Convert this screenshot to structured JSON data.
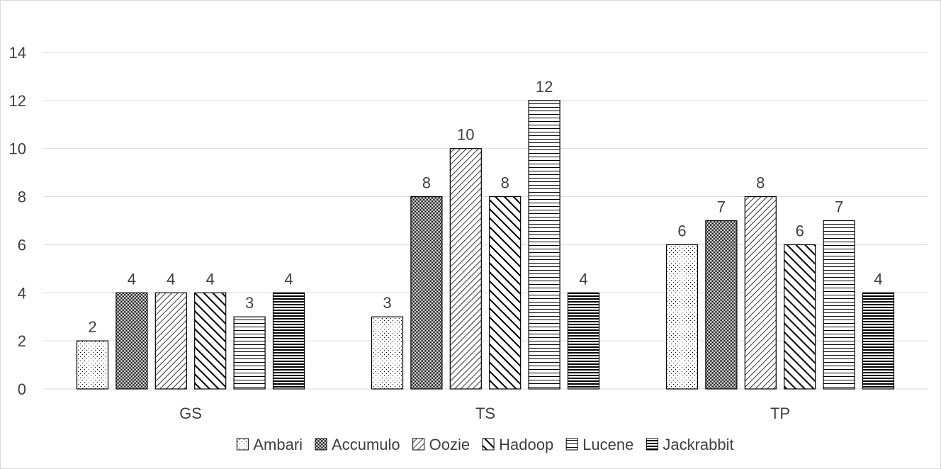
{
  "chart_data": {
    "type": "bar",
    "title": "",
    "xlabel": "",
    "ylabel": "",
    "categories": [
      "GS",
      "TS",
      "TP"
    ],
    "series": [
      {
        "name": "Ambari",
        "values": [
          2,
          3,
          6
        ],
        "pattern": "dots"
      },
      {
        "name": "Accumulo",
        "values": [
          4,
          8,
          7
        ],
        "pattern": "dense-dots"
      },
      {
        "name": "Oozie",
        "values": [
          4,
          10,
          8
        ],
        "pattern": "light-downward-diagonal"
      },
      {
        "name": "Hadoop",
        "values": [
          4,
          8,
          6
        ],
        "pattern": "wide-upward-diagonal"
      },
      {
        "name": "Lucene",
        "values": [
          3,
          12,
          7
        ],
        "pattern": "light-horizontal"
      },
      {
        "name": "Jackrabbit",
        "values": [
          4,
          4,
          4
        ],
        "pattern": "dark-horizontal"
      }
    ],
    "ylim": [
      0,
      14
    ],
    "yticks": [
      0,
      2,
      4,
      6,
      8,
      10,
      12,
      14
    ],
    "data_labels": true,
    "grid": true,
    "legend_position": "bottom",
    "colors": {
      "bar_stroke": "#000000",
      "grid": "#d9d9d9",
      "text": "#404040"
    }
  }
}
